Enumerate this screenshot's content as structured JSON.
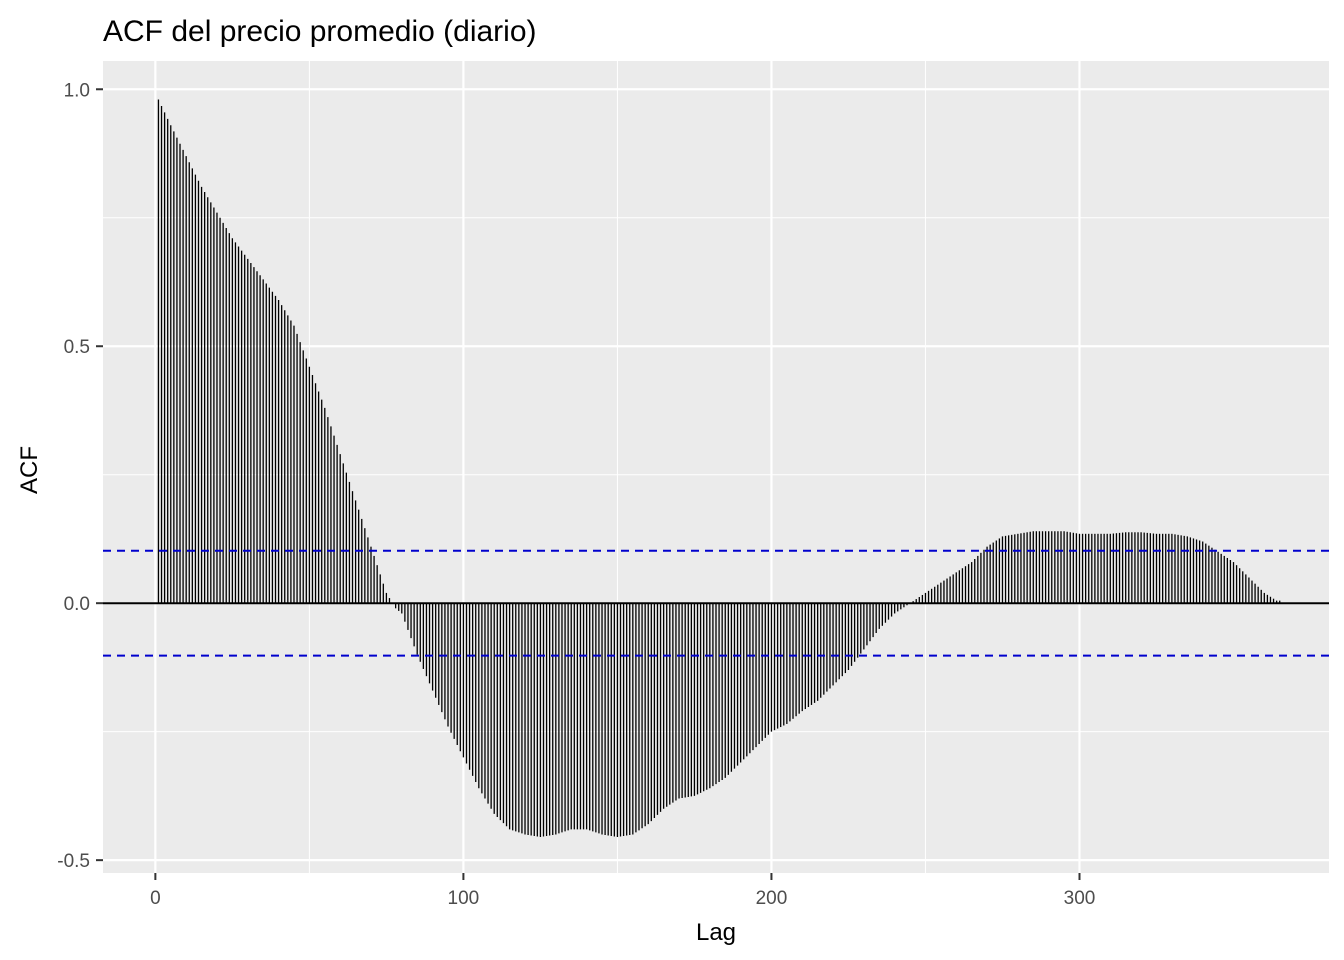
{
  "chart_data": {
    "type": "bar",
    "title": "ACF del precio promedio (diario)",
    "xlabel": "Lag",
    "ylabel": "ACF",
    "xlim": [
      -17,
      381
    ],
    "ylim": [
      -0.525,
      1.055
    ],
    "x_ticks": [
      0,
      100,
      200,
      300
    ],
    "x_tick_labels": [
      "0",
      "100",
      "200",
      "300"
    ],
    "y_ticks": [
      -0.5,
      0.0,
      0.5,
      1.0
    ],
    "y_tick_labels": [
      "-0.5",
      "0.0",
      "0.5",
      "1.0"
    ],
    "grid": true,
    "legend": "none",
    "confidence_bound": 0.102,
    "lag_max": 365,
    "acf_anchors": {
      "lag": [
        1,
        5,
        10,
        15,
        20,
        25,
        30,
        35,
        40,
        45,
        50,
        55,
        60,
        65,
        70,
        75,
        78,
        80,
        85,
        90,
        95,
        100,
        105,
        110,
        115,
        120,
        125,
        130,
        135,
        140,
        145,
        150,
        155,
        160,
        165,
        170,
        175,
        180,
        185,
        190,
        195,
        200,
        205,
        210,
        215,
        220,
        225,
        230,
        235,
        240,
        245,
        250,
        255,
        260,
        265,
        270,
        275,
        280,
        285,
        290,
        295,
        300,
        305,
        310,
        315,
        320,
        325,
        330,
        335,
        340,
        345,
        350,
        355,
        360,
        364
      ],
      "acf": [
        0.98,
        0.93,
        0.87,
        0.81,
        0.76,
        0.71,
        0.67,
        0.63,
        0.59,
        0.54,
        0.46,
        0.38,
        0.29,
        0.2,
        0.11,
        0.02,
        -0.01,
        -0.02,
        -0.1,
        -0.17,
        -0.24,
        -0.3,
        -0.36,
        -0.41,
        -0.44,
        -0.45,
        -0.455,
        -0.45,
        -0.44,
        -0.44,
        -0.45,
        -0.455,
        -0.45,
        -0.43,
        -0.4,
        -0.38,
        -0.375,
        -0.36,
        -0.34,
        -0.31,
        -0.28,
        -0.25,
        -0.235,
        -0.21,
        -0.19,
        -0.16,
        -0.13,
        -0.09,
        -0.05,
        -0.02,
        0.0,
        0.02,
        0.04,
        0.06,
        0.08,
        0.11,
        0.13,
        0.135,
        0.14,
        0.14,
        0.14,
        0.135,
        0.135,
        0.135,
        0.138,
        0.138,
        0.135,
        0.135,
        0.13,
        0.12,
        0.1,
        0.08,
        0.05,
        0.02,
        0.005
      ]
    }
  }
}
